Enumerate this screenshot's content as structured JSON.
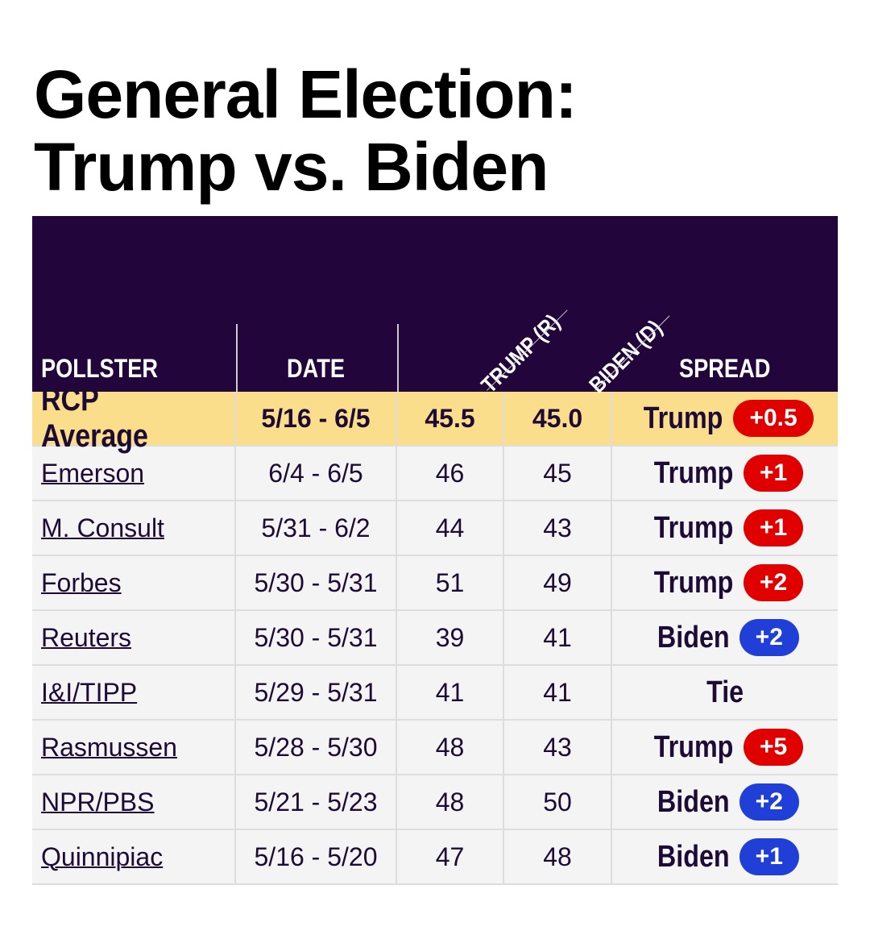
{
  "title_line1": "General Election:",
  "title_line2": "Trump vs. Biden",
  "headers": {
    "pollster": "POLLSTER",
    "date": "DATE",
    "trump": "TRUMP (R)",
    "biden": "BIDEN (D)",
    "spread": "SPREAD"
  },
  "colors": {
    "rep": "#e00000",
    "dem": "#1f3fd6",
    "header_bg": "#22053a",
    "average_bg": "#fbde8b"
  },
  "average": {
    "pollster": "RCP Average",
    "date": "5/16 - 6/5",
    "trump": "45.5",
    "biden": "45.0",
    "winner": "Trump",
    "spread": "+0.5",
    "party": "rep"
  },
  "rows": [
    {
      "pollster": "Emerson",
      "date": "6/4 - 6/5",
      "trump": "46",
      "biden": "45",
      "winner": "Trump",
      "spread": "+1",
      "party": "rep"
    },
    {
      "pollster": "M. Consult",
      "date": "5/31 - 6/2",
      "trump": "44",
      "biden": "43",
      "winner": "Trump",
      "spread": "+1",
      "party": "rep"
    },
    {
      "pollster": "Forbes",
      "date": "5/30 - 5/31",
      "trump": "51",
      "biden": "49",
      "winner": "Trump",
      "spread": "+2",
      "party": "rep"
    },
    {
      "pollster": "Reuters",
      "date": "5/30 - 5/31",
      "trump": "39",
      "biden": "41",
      "winner": "Biden",
      "spread": "+2",
      "party": "dem"
    },
    {
      "pollster": "I&I/TIPP",
      "date": "5/29 - 5/31",
      "trump": "41",
      "biden": "41",
      "winner": "Tie",
      "spread": null,
      "party": "none"
    },
    {
      "pollster": "Rasmussen",
      "date": "5/28 - 5/30",
      "trump": "48",
      "biden": "43",
      "winner": "Trump",
      "spread": "+5",
      "party": "rep"
    },
    {
      "pollster": "NPR/PBS",
      "date": "5/21 - 5/23",
      "trump": "48",
      "biden": "50",
      "winner": "Biden",
      "spread": "+2",
      "party": "dem"
    },
    {
      "pollster": "Quinnipiac",
      "date": "5/16 - 5/20",
      "trump": "47",
      "biden": "48",
      "winner": "Biden",
      "spread": "+1",
      "party": "dem"
    }
  ]
}
